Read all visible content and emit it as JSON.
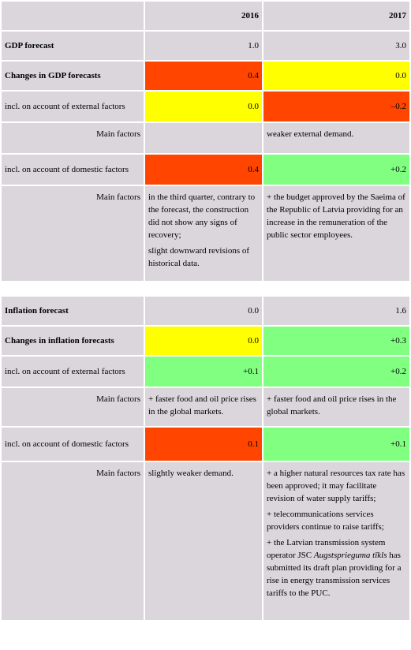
{
  "header": [
    "2016",
    "2017"
  ],
  "sections": [
    {
      "rows": [
        {
          "label": "GDP forecast",
          "bold": true,
          "cells": [
            "1.0",
            "3.0"
          ]
        },
        {
          "label": "Changes in GDP forecasts",
          "bold": true,
          "cells": [
            "0.4",
            "0.0"
          ],
          "colors": [
            "#ff4500",
            "#ffff00"
          ]
        },
        {
          "label": "incl. on account of external factors",
          "cells": [
            "0.0",
            "–0.2"
          ],
          "colors": [
            "#ffff00",
            "#ff4500"
          ]
        },
        {
          "label": "Main factors",
          "factors": [
            [],
            [
              "weaker external demand."
            ]
          ]
        },
        {
          "label": "incl. on account of domestic factors",
          "cells": [
            "0.4",
            "+0.2"
          ],
          "colors": [
            "#ff4500",
            "#80ff80"
          ]
        },
        {
          "label": "Main factors",
          "factors": [
            [
              "in the third quarter, contrary to the forecast, the construction did not show any signs of recovery;",
              "slight downward revisions of historical data."
            ],
            [
              "+ the budget approved by the Saeima of the Republic of Latvia providing for an increase in the remuneration of the public sector employees."
            ]
          ]
        }
      ]
    },
    {
      "rows": [
        {
          "label": "Inflation forecast",
          "bold": true,
          "cells": [
            "0.0",
            "1.6"
          ]
        },
        {
          "label": "Changes in inflation forecasts",
          "bold": true,
          "cells": [
            "0.0",
            "+0.3"
          ],
          "colors": [
            "#ffff00",
            "#80ff80"
          ]
        },
        {
          "label": "incl. on account of external factors",
          "cells": [
            "+0.1",
            "+0.2"
          ],
          "colors": [
            "#80ff80",
            "#80ff80"
          ]
        },
        {
          "label": "Main factors",
          "factors": [
            [
              "+ faster food and oil price rises in the global markets."
            ],
            [
              "+ faster food and oil price rises in the global markets."
            ]
          ]
        },
        {
          "label": "incl. on account of domestic factors",
          "cells": [
            "0.1",
            "+0.1"
          ],
          "colors": [
            "#ff4500",
            "#80ff80"
          ]
        },
        {
          "label": "Main factors",
          "factors": [
            [
              "slightly weaker demand."
            ],
            [
              "+ a higher natural resources tax rate has been approved; it may facilitate revision of water supply tariffs;",
              "+ telecommunications services providers continue to raise tariffs;",
              [
                {
                  "text": "+ the Latvian transmission system operator JSC "
                },
                {
                  "text": "Augstsprieguma tīkls",
                  "italic": true
                },
                {
                  "text": " has submitted its draft plan providing for a rise in energy transmission services tariffs to the PUC."
                }
              ]
            ]
          ]
        }
      ]
    }
  ]
}
